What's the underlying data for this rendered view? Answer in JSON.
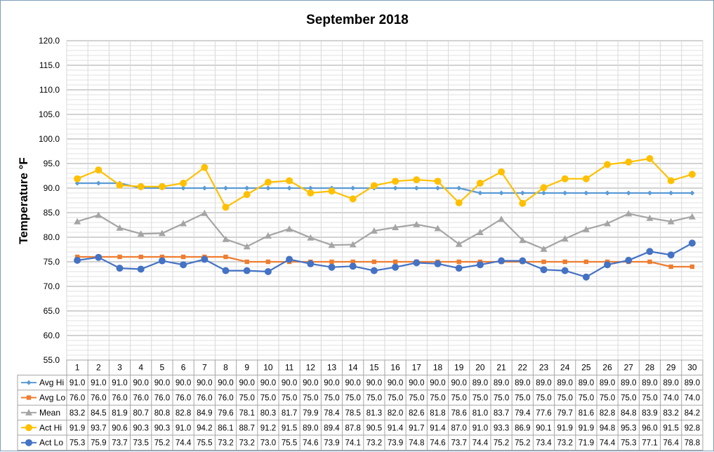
{
  "chart_data": {
    "type": "line",
    "title": "September 2018",
    "ylabel": "Temperature °F",
    "xlabel": "",
    "ylim": [
      55.0,
      120.0
    ],
    "ytick_step": 5.0,
    "y_tick_decimals": 1,
    "grid": true,
    "minor_grid_step": 1.0,
    "legend": "data-table",
    "x": [
      "1",
      "2",
      "3",
      "4",
      "5",
      "6",
      "7",
      "8",
      "9",
      "10",
      "11",
      "12",
      "13",
      "14",
      "15",
      "16",
      "17",
      "18",
      "19",
      "20",
      "21",
      "22",
      "23",
      "24",
      "25",
      "26",
      "27",
      "28",
      "29",
      "30"
    ],
    "series": [
      {
        "name": "Avg Hi",
        "color": "#5b9bd5",
        "marker": "diamond",
        "values": [
          91.0,
          91.0,
          91.0,
          90.0,
          90.0,
          90.0,
          90.0,
          90.0,
          90.0,
          90.0,
          90.0,
          90.0,
          90.0,
          90.0,
          90.0,
          90.0,
          90.0,
          90.0,
          90.0,
          89.0,
          89.0,
          89.0,
          89.0,
          89.0,
          89.0,
          89.0,
          89.0,
          89.0,
          89.0,
          89.0
        ]
      },
      {
        "name": "Avg Lo",
        "color": "#ed7d31",
        "marker": "square",
        "values": [
          76.0,
          76.0,
          76.0,
          76.0,
          76.0,
          76.0,
          76.0,
          76.0,
          75.0,
          75.0,
          75.0,
          75.0,
          75.0,
          75.0,
          75.0,
          75.0,
          75.0,
          75.0,
          75.0,
          75.0,
          75.0,
          75.0,
          75.0,
          75.0,
          75.0,
          75.0,
          75.0,
          75.0,
          74.0,
          74.0
        ]
      },
      {
        "name": "Mean",
        "color": "#a5a5a5",
        "marker": "triangle",
        "values": [
          83.2,
          84.5,
          81.9,
          80.7,
          80.8,
          82.8,
          84.9,
          79.6,
          78.1,
          80.3,
          81.7,
          79.9,
          78.4,
          78.5,
          81.3,
          82.0,
          82.6,
          81.8,
          78.6,
          81.0,
          83.7,
          79.4,
          77.6,
          79.7,
          81.6,
          82.8,
          84.8,
          83.9,
          83.2,
          84.2
        ]
      },
      {
        "name": "Act Hi",
        "color": "#ffc000",
        "marker": "circle",
        "values": [
          91.9,
          93.7,
          90.6,
          90.3,
          90.3,
          91.0,
          94.2,
          86.1,
          88.7,
          91.2,
          91.5,
          89.0,
          89.4,
          87.8,
          90.5,
          91.4,
          91.7,
          91.4,
          87.0,
          91.0,
          93.3,
          86.9,
          90.1,
          91.9,
          91.9,
          94.8,
          95.3,
          96.0,
          91.5,
          92.8
        ]
      },
      {
        "name": "Act Lo",
        "color": "#4472c4",
        "marker": "circle",
        "values": [
          75.3,
          75.9,
          73.7,
          73.5,
          75.2,
          74.4,
          75.5,
          73.2,
          73.2,
          73.0,
          75.5,
          74.6,
          73.9,
          74.1,
          73.2,
          73.9,
          74.8,
          74.6,
          73.7,
          74.4,
          75.2,
          75.2,
          73.4,
          73.2,
          71.9,
          74.4,
          75.3,
          77.1,
          76.4,
          78.8
        ]
      }
    ]
  }
}
